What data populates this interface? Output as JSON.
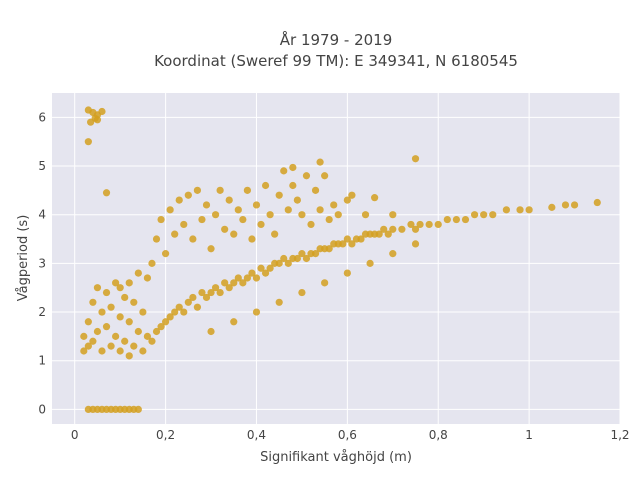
{
  "chart_data": {
    "type": "scatter",
    "title_line1": "År 1979 - 2019",
    "title_line2": "Koordinat (Sweref 99 TM): E 349341, N 6180545",
    "xlabel": "Signifikant våghöjd (m)",
    "ylabel": "Vågperiod (s)",
    "xlim": [
      -0.05,
      1.2
    ],
    "ylim": [
      -0.3,
      6.5
    ],
    "x_ticks": [
      0,
      0.2,
      0.4,
      0.6,
      0.8,
      1,
      1.2
    ],
    "x_tick_labels": [
      "0",
      "0,2",
      "0,4",
      "0,6",
      "0,8",
      "1",
      "1,2"
    ],
    "y_ticks": [
      0,
      1,
      2,
      3,
      4,
      5,
      6
    ],
    "y_tick_labels": [
      "0",
      "1",
      "2",
      "3",
      "4",
      "5",
      "6"
    ],
    "grid": true,
    "marker_color": "#D4A020",
    "plot_background": "#E5E5EF",
    "points": [
      [
        0.03,
        6.15
      ],
      [
        0.04,
        6.1
      ],
      [
        0.05,
        6.05
      ],
      [
        0.06,
        6.12
      ],
      [
        0.045,
        5.98
      ],
      [
        0.035,
        5.9
      ],
      [
        0.05,
        5.95
      ],
      [
        0.03,
        5.5
      ],
      [
        0.07,
        4.45
      ],
      [
        0.03,
        0.0
      ],
      [
        0.04,
        0.0
      ],
      [
        0.05,
        0.0
      ],
      [
        0.06,
        0.0
      ],
      [
        0.07,
        0.0
      ],
      [
        0.08,
        0.0
      ],
      [
        0.09,
        0.0
      ],
      [
        0.1,
        0.0
      ],
      [
        0.11,
        0.0
      ],
      [
        0.12,
        0.0
      ],
      [
        0.13,
        0.0
      ],
      [
        0.14,
        0.0
      ],
      [
        0.02,
        1.2
      ],
      [
        0.02,
        1.5
      ],
      [
        0.03,
        1.3
      ],
      [
        0.03,
        1.8
      ],
      [
        0.04,
        1.4
      ],
      [
        0.04,
        2.2
      ],
      [
        0.05,
        1.6
      ],
      [
        0.05,
        2.5
      ],
      [
        0.06,
        1.2
      ],
      [
        0.06,
        2.0
      ],
      [
        0.07,
        1.7
      ],
      [
        0.07,
        2.4
      ],
      [
        0.08,
        1.3
      ],
      [
        0.08,
        2.1
      ],
      [
        0.09,
        1.5
      ],
      [
        0.09,
        2.6
      ],
      [
        0.1,
        1.2
      ],
      [
        0.1,
        1.9
      ],
      [
        0.1,
        2.5
      ],
      [
        0.11,
        1.4
      ],
      [
        0.11,
        2.3
      ],
      [
        0.12,
        1.1
      ],
      [
        0.12,
        1.8
      ],
      [
        0.12,
        2.6
      ],
      [
        0.13,
        1.3
      ],
      [
        0.13,
        2.2
      ],
      [
        0.14,
        1.6
      ],
      [
        0.14,
        2.8
      ],
      [
        0.15,
        1.2
      ],
      [
        0.15,
        2.0
      ],
      [
        0.16,
        1.5
      ],
      [
        0.16,
        2.7
      ],
      [
        0.17,
        1.4
      ],
      [
        0.17,
        3.0
      ],
      [
        0.18,
        1.6
      ],
      [
        0.18,
        3.5
      ],
      [
        0.19,
        1.7
      ],
      [
        0.19,
        3.9
      ],
      [
        0.2,
        1.8
      ],
      [
        0.2,
        3.2
      ],
      [
        0.21,
        1.9
      ],
      [
        0.21,
        4.1
      ],
      [
        0.22,
        2.0
      ],
      [
        0.22,
        3.6
      ],
      [
        0.23,
        2.1
      ],
      [
        0.23,
        4.3
      ],
      [
        0.24,
        2.0
      ],
      [
        0.24,
        3.8
      ],
      [
        0.25,
        2.2
      ],
      [
        0.25,
        4.4
      ],
      [
        0.26,
        2.3
      ],
      [
        0.26,
        3.5
      ],
      [
        0.27,
        2.1
      ],
      [
        0.27,
        4.5
      ],
      [
        0.28,
        2.4
      ],
      [
        0.28,
        3.9
      ],
      [
        0.29,
        2.3
      ],
      [
        0.29,
        4.2
      ],
      [
        0.3,
        2.4
      ],
      [
        0.3,
        3.3
      ],
      [
        0.31,
        2.5
      ],
      [
        0.31,
        4.0
      ],
      [
        0.32,
        2.4
      ],
      [
        0.32,
        4.5
      ],
      [
        0.33,
        2.6
      ],
      [
        0.33,
        3.7
      ],
      [
        0.34,
        2.5
      ],
      [
        0.34,
        4.3
      ],
      [
        0.35,
        2.6
      ],
      [
        0.35,
        3.6
      ],
      [
        0.36,
        2.7
      ],
      [
        0.36,
        4.1
      ],
      [
        0.37,
        2.6
      ],
      [
        0.37,
        3.9
      ],
      [
        0.38,
        2.7
      ],
      [
        0.38,
        4.5
      ],
      [
        0.39,
        2.8
      ],
      [
        0.39,
        3.5
      ],
      [
        0.4,
        2.7
      ],
      [
        0.4,
        4.2
      ],
      [
        0.41,
        2.9
      ],
      [
        0.41,
        3.8
      ],
      [
        0.42,
        2.8
      ],
      [
        0.42,
        4.6
      ],
      [
        0.43,
        2.9
      ],
      [
        0.43,
        4.0
      ],
      [
        0.44,
        3.0
      ],
      [
        0.44,
        3.6
      ],
      [
        0.45,
        3.0
      ],
      [
        0.45,
        4.4
      ],
      [
        0.46,
        3.1
      ],
      [
        0.46,
        4.9
      ],
      [
        0.47,
        3.0
      ],
      [
        0.47,
        4.1
      ],
      [
        0.48,
        3.1
      ],
      [
        0.48,
        4.6
      ],
      [
        0.49,
        3.1
      ],
      [
        0.49,
        4.3
      ],
      [
        0.5,
        3.2
      ],
      [
        0.5,
        4.0
      ],
      [
        0.51,
        3.1
      ],
      [
        0.51,
        4.8
      ],
      [
        0.52,
        3.2
      ],
      [
        0.52,
        3.8
      ],
      [
        0.53,
        3.2
      ],
      [
        0.53,
        4.5
      ],
      [
        0.54,
        3.3
      ],
      [
        0.54,
        4.1
      ],
      [
        0.55,
        3.3
      ],
      [
        0.55,
        4.8
      ],
      [
        0.56,
        3.3
      ],
      [
        0.56,
        3.9
      ],
      [
        0.57,
        3.4
      ],
      [
        0.57,
        4.2
      ],
      [
        0.58,
        3.4
      ],
      [
        0.58,
        4.0
      ],
      [
        0.59,
        3.4
      ],
      [
        0.6,
        3.5
      ],
      [
        0.6,
        4.3
      ],
      [
        0.61,
        3.4
      ],
      [
        0.62,
        3.5
      ],
      [
        0.63,
        3.5
      ],
      [
        0.64,
        3.6
      ],
      [
        0.64,
        4.0
      ],
      [
        0.65,
        3.6
      ],
      [
        0.66,
        3.6
      ],
      [
        0.67,
        3.6
      ],
      [
        0.68,
        3.7
      ],
      [
        0.69,
        3.6
      ],
      [
        0.7,
        3.7
      ],
      [
        0.7,
        4.0
      ],
      [
        0.72,
        3.7
      ],
      [
        0.74,
        3.8
      ],
      [
        0.75,
        3.7
      ],
      [
        0.76,
        3.8
      ],
      [
        0.78,
        3.8
      ],
      [
        0.8,
        3.8
      ],
      [
        0.82,
        3.9
      ],
      [
        0.84,
        3.9
      ],
      [
        0.86,
        3.9
      ],
      [
        0.88,
        4.0
      ],
      [
        0.9,
        4.0
      ],
      [
        0.92,
        4.0
      ],
      [
        0.95,
        4.1
      ],
      [
        0.98,
        4.1
      ],
      [
        1.0,
        4.1
      ],
      [
        1.05,
        4.15
      ],
      [
        1.08,
        4.2
      ],
      [
        1.1,
        4.2
      ],
      [
        1.15,
        4.25
      ],
      [
        0.3,
        1.6
      ],
      [
        0.35,
        1.8
      ],
      [
        0.4,
        2.0
      ],
      [
        0.45,
        2.2
      ],
      [
        0.5,
        2.4
      ],
      [
        0.55,
        2.6
      ],
      [
        0.6,
        2.8
      ],
      [
        0.65,
        3.0
      ],
      [
        0.7,
        3.2
      ],
      [
        0.75,
        3.4
      ],
      [
        0.48,
        4.97
      ],
      [
        0.54,
        5.08
      ],
      [
        0.75,
        5.15
      ],
      [
        0.61,
        4.4
      ],
      [
        0.66,
        4.35
      ]
    ]
  }
}
